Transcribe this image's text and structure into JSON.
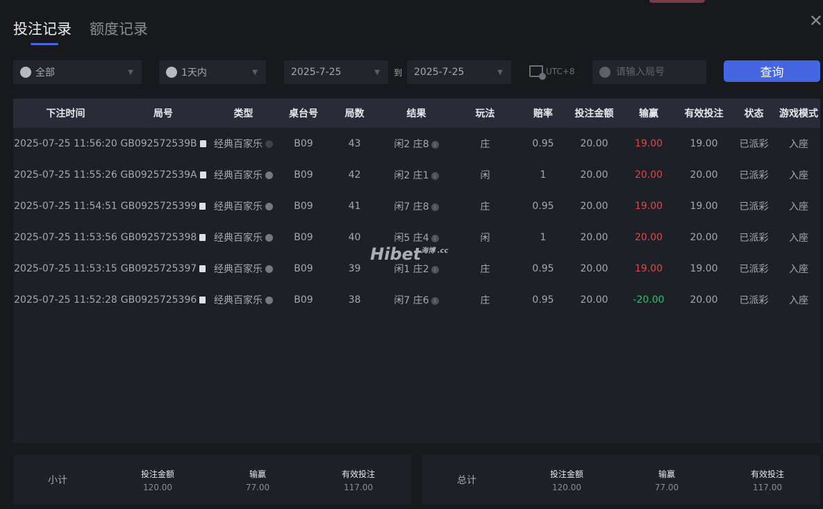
{
  "tabs": [
    "投注记录",
    "额度记录"
  ],
  "filters": {
    "game_type": "全部",
    "time_range": "1天内",
    "date_from": "2025-7-25",
    "to_label": "到",
    "date_to": "2025-7-25",
    "timezone": "UTC+8",
    "round_placeholder": "请输入局号",
    "query_label": "查询"
  },
  "table": {
    "headers": [
      "下注时间",
      "局号",
      "类型",
      "桌台号",
      "局数",
      "结果",
      "玩法",
      "赔率",
      "投注金额",
      "输赢",
      "有效投注",
      "状态",
      "游戏模式"
    ],
    "rows": [
      [
        "2025-07-25 11:56:20",
        "GB092572539B",
        "经典百家乐",
        "B09",
        "43",
        "闲2 庄8",
        "庄",
        "0.95",
        "20.00",
        "19.00",
        "19.00",
        "已派彩",
        "入座"
      ],
      [
        "2025-07-25 11:55:26",
        "GB092572539A",
        "经典百家乐",
        "B09",
        "42",
        "闲2 庄1",
        "闲",
        "1",
        "20.00",
        "20.00",
        "20.00",
        "已派彩",
        "入座"
      ],
      [
        "2025-07-25 11:54:51",
        "GB0925725399",
        "经典百家乐",
        "B09",
        "41",
        "闲7 庄8",
        "庄",
        "0.95",
        "20.00",
        "19.00",
        "19.00",
        "已派彩",
        "入座"
      ],
      [
        "2025-07-25 11:53:56",
        "GB0925725398",
        "经典百家乐",
        "B09",
        "40",
        "闲5 庄4",
        "闲",
        "1",
        "20.00",
        "20.00",
        "20.00",
        "已派彩",
        "入座"
      ],
      [
        "2025-07-25 11:53:15",
        "GB0925725397",
        "经典百家乐",
        "B09",
        "39",
        "闲1 庄2",
        "庄",
        "0.95",
        "20.00",
        "19.00",
        "19.00",
        "已派彩",
        "入座"
      ],
      [
        "2025-07-25 11:52:28",
        "GB0925725396",
        "经典百家乐",
        "B09",
        "38",
        "闲7 庄6",
        "庄",
        "0.95",
        "20.00",
        "-20.00",
        "20.00",
        "已派彩",
        "入座"
      ]
    ]
  },
  "watermark": "Hibet.cc 海博",
  "subtotal": {
    "label": "小计",
    "bet_label": "投注金额",
    "bet": "120.00",
    "win_label": "输赢",
    "win": "77.00",
    "valid_label": "有效投注",
    "valid": "117.00"
  },
  "total": {
    "label": "总计",
    "bet_label": "投注金额",
    "bet": "120.00",
    "win_label": "输赢",
    "win": "77.00",
    "valid_label": "有效投注",
    "valid": "117.00"
  },
  "colors": {
    "accent": "#4566e0",
    "win": "#e04848",
    "loss": "#28c46a"
  }
}
